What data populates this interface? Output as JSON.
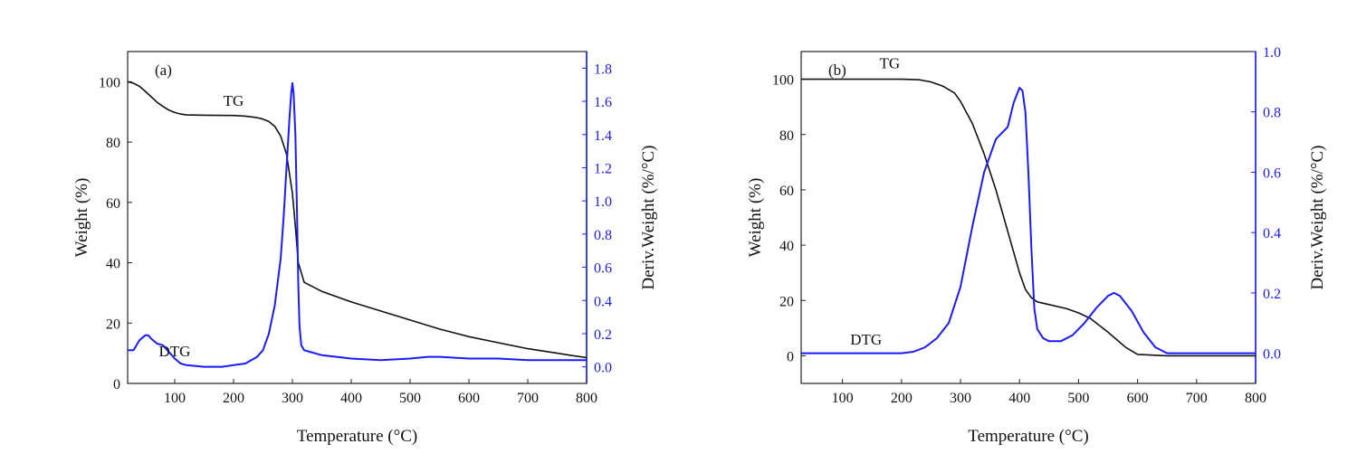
{
  "chart_data": [
    {
      "type": "line",
      "panel_label": "(a)",
      "xlabel": "Temperature (°C)",
      "ylabel": "Weight (%)",
      "ylabel_right": "Deriv.Weight (%/°C)",
      "xlim": [
        20,
        800
      ],
      "ylim": [
        0,
        110
      ],
      "ylim_right": [
        -0.1,
        1.9
      ],
      "x_ticks": [
        100,
        200,
        300,
        400,
        500,
        600,
        700,
        800
      ],
      "y_ticks": [
        0,
        20,
        40,
        60,
        80,
        100
      ],
      "y_ticks_right": [
        0.0,
        0.2,
        0.4,
        0.6,
        0.8,
        1.0,
        1.2,
        1.4,
        1.6,
        1.8
      ],
      "colors": {
        "tg": "#111111",
        "dtg": "#1a1aff",
        "right_axis": "#1a1aff"
      },
      "series": [
        {
          "name": "TG",
          "axis": "left",
          "x": [
            20,
            30,
            40,
            50,
            60,
            70,
            80,
            90,
            100,
            110,
            120,
            150,
            200,
            220,
            240,
            250,
            260,
            270,
            280,
            290,
            300,
            305,
            310,
            320,
            330,
            350,
            400,
            450,
            500,
            550,
            600,
            650,
            700,
            750,
            800
          ],
          "y": [
            100,
            99.5,
            98.5,
            96.8,
            95,
            93.2,
            91.8,
            90.6,
            89.8,
            89.3,
            89,
            88.9,
            88.8,
            88.6,
            88.1,
            87.6,
            86.8,
            85.2,
            82,
            76,
            63,
            52,
            40,
            33.5,
            32.5,
            30.5,
            27,
            24,
            21,
            18,
            15.5,
            13.5,
            11.5,
            10,
            8.5
          ]
        },
        {
          "name": "DTG",
          "axis": "right",
          "x": [
            20,
            30,
            40,
            50,
            55,
            60,
            70,
            80,
            90,
            100,
            110,
            120,
            150,
            180,
            200,
            220,
            240,
            250,
            260,
            270,
            280,
            285,
            290,
            295,
            298,
            300,
            302,
            305,
            308,
            310,
            312,
            315,
            320,
            330,
            350,
            400,
            450,
            500,
            530,
            550,
            600,
            650,
            700,
            750,
            800
          ],
          "y": [
            0.1,
            0.1,
            0.16,
            0.19,
            0.19,
            0.17,
            0.14,
            0.13,
            0.09,
            0.05,
            0.02,
            0.01,
            0.0,
            0.0,
            0.01,
            0.02,
            0.06,
            0.1,
            0.2,
            0.37,
            0.65,
            0.9,
            1.2,
            1.5,
            1.65,
            1.71,
            1.65,
            1.4,
            0.9,
            0.5,
            0.25,
            0.13,
            0.1,
            0.09,
            0.07,
            0.05,
            0.04,
            0.05,
            0.06,
            0.06,
            0.05,
            0.05,
            0.04,
            0.04,
            0.04
          ]
        }
      ],
      "annotations": [
        {
          "text": "TG",
          "x": 200,
          "y": 92
        },
        {
          "text": "DTG",
          "x": 100,
          "y": 9
        }
      ]
    },
    {
      "type": "line",
      "panel_label": "(b)",
      "xlabel": "Temperature (°C)",
      "ylabel": "Weight (%)",
      "ylabel_right": "Deriv.Weight (%/°C)",
      "xlim": [
        30,
        800
      ],
      "ylim": [
        -10,
        110
      ],
      "ylim_right": [
        -0.1,
        1.0
      ],
      "x_ticks": [
        100,
        200,
        300,
        400,
        500,
        600,
        700,
        800
      ],
      "y_ticks": [
        0,
        20,
        40,
        60,
        80,
        100
      ],
      "y_ticks_right": [
        0.0,
        0.2,
        0.4,
        0.6,
        0.8,
        1.0
      ],
      "colors": {
        "tg": "#111111",
        "dtg": "#1a1aff",
        "right_axis": "#1a1aff"
      },
      "series": [
        {
          "name": "TG",
          "axis": "left",
          "x": [
            30,
            100,
            200,
            230,
            250,
            270,
            290,
            300,
            320,
            340,
            360,
            380,
            400,
            410,
            420,
            430,
            450,
            480,
            500,
            520,
            550,
            580,
            600,
            650,
            700,
            800
          ],
          "y": [
            100,
            100,
            100,
            99.8,
            99,
            97.5,
            95,
            92,
            84,
            73,
            60,
            45,
            30,
            24,
            21,
            19.5,
            18.5,
            17,
            15.5,
            13.5,
            8.5,
            3,
            0.5,
            0,
            0,
            0
          ]
        },
        {
          "name": "DTG",
          "axis": "right",
          "x": [
            30,
            100,
            200,
            220,
            240,
            260,
            280,
            300,
            320,
            340,
            360,
            370,
            380,
            390,
            400,
            405,
            410,
            415,
            420,
            425,
            430,
            440,
            450,
            470,
            490,
            510,
            530,
            550,
            560,
            570,
            590,
            610,
            630,
            650,
            700,
            800
          ],
          "y": [
            0.0,
            0.0,
            0.0,
            0.005,
            0.02,
            0.05,
            0.1,
            0.22,
            0.42,
            0.6,
            0.71,
            0.73,
            0.75,
            0.83,
            0.88,
            0.87,
            0.8,
            0.6,
            0.35,
            0.15,
            0.08,
            0.05,
            0.04,
            0.04,
            0.06,
            0.1,
            0.15,
            0.19,
            0.2,
            0.19,
            0.14,
            0.07,
            0.02,
            0.0,
            0.0,
            0.0
          ]
        }
      ],
      "annotations": [
        {
          "text": "TG",
          "x": 180,
          "y": 104
        },
        {
          "text": "DTG",
          "x": 140,
          "y": 4
        }
      ]
    }
  ]
}
